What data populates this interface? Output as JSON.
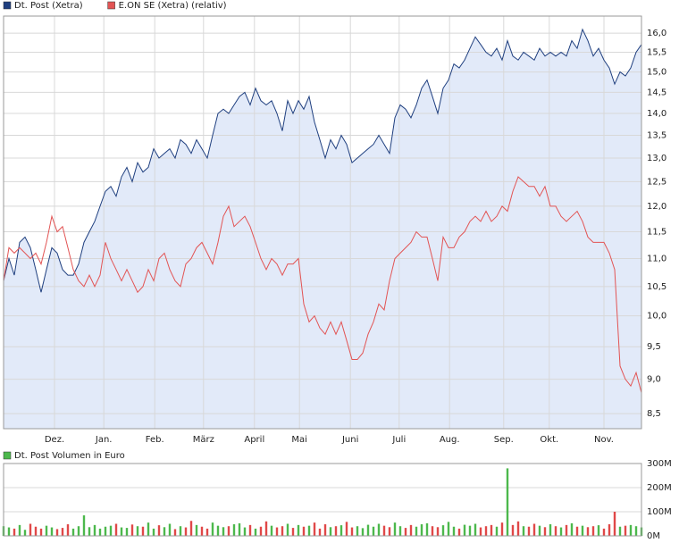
{
  "chart_data": [
    {
      "type": "line",
      "log_scale": true,
      "grid": true,
      "area_color": "#e2eaf9",
      "xlim": [
        0,
        119
      ],
      "ylim": [
        8.29,
        16.46
      ],
      "xticks": [
        {
          "value": 9.5,
          "label": "Dez."
        },
        {
          "value": 18.7,
          "label": "Jan."
        },
        {
          "value": 28.2,
          "label": "Feb."
        },
        {
          "value": 37.3,
          "label": "März"
        },
        {
          "value": 46.8,
          "label": "April"
        },
        {
          "value": 55.2,
          "label": "Mai"
        },
        {
          "value": 64.7,
          "label": "Juni"
        },
        {
          "value": 73.8,
          "label": "Juli"
        },
        {
          "value": 83.2,
          "label": "Aug."
        },
        {
          "value": 93.3,
          "label": "Sep."
        },
        {
          "value": 101.8,
          "label": "Okt."
        },
        {
          "value": 112,
          "label": "Nov."
        }
      ],
      "yticks": [
        {
          "value": 8.5,
          "label": "8,5"
        },
        {
          "value": 9,
          "label": "9,0"
        },
        {
          "value": 9.5,
          "label": "9,5"
        },
        {
          "value": 10,
          "label": "10,0"
        },
        {
          "value": 10.5,
          "label": "10,5"
        },
        {
          "value": 11,
          "label": "11,0"
        },
        {
          "value": 11.5,
          "label": "11,5"
        },
        {
          "value": 12,
          "label": "12,0"
        },
        {
          "value": 12.5,
          "label": "12,5"
        },
        {
          "value": 13,
          "label": "13,0"
        },
        {
          "value": 13.5,
          "label": "13,5"
        },
        {
          "value": 14,
          "label": "14,0"
        },
        {
          "value": 14.5,
          "label": "14,5"
        },
        {
          "value": 15,
          "label": "15,0"
        },
        {
          "value": 15.5,
          "label": "15,5"
        },
        {
          "value": 16,
          "label": "16,0"
        }
      ],
      "series": [
        {
          "name": "Dt. Post (Xetra)",
          "color": "#1f3f7f",
          "values": [
            10.6,
            11.0,
            10.7,
            11.3,
            11.4,
            11.2,
            10.8,
            10.4,
            10.8,
            11.2,
            11.1,
            10.8,
            10.7,
            10.7,
            10.9,
            11.3,
            11.5,
            11.7,
            12.0,
            12.3,
            12.4,
            12.2,
            12.6,
            12.8,
            12.5,
            12.9,
            12.7,
            12.8,
            13.2,
            13.0,
            13.1,
            13.2,
            13.0,
            13.4,
            13.3,
            13.1,
            13.4,
            13.2,
            13.0,
            13.5,
            14.0,
            14.1,
            14.0,
            14.2,
            14.4,
            14.5,
            14.2,
            14.6,
            14.3,
            14.2,
            14.3,
            14.0,
            13.6,
            14.3,
            14.0,
            14.3,
            14.1,
            14.4,
            13.8,
            13.4,
            13.0,
            13.4,
            13.2,
            13.5,
            13.3,
            12.9,
            13.0,
            13.1,
            13.2,
            13.3,
            13.5,
            13.3,
            13.1,
            13.9,
            14.2,
            14.1,
            13.9,
            14.2,
            14.6,
            14.8,
            14.4,
            14.0,
            14.6,
            14.8,
            15.2,
            15.1,
            15.3,
            15.6,
            15.9,
            15.7,
            15.5,
            15.4,
            15.6,
            15.3,
            15.8,
            15.4,
            15.3,
            15.5,
            15.4,
            15.3,
            15.6,
            15.4,
            15.5,
            15.4,
            15.5,
            15.4,
            15.8,
            15.6,
            16.1,
            15.8,
            15.4,
            15.6,
            15.3,
            15.1,
            14.7,
            15.0,
            14.9,
            15.1,
            15.5,
            15.7
          ]
        },
        {
          "name": "E.ON SE (Xetra) (relativ)",
          "color": "#e25454",
          "values": [
            10.6,
            11.2,
            11.1,
            11.2,
            11.1,
            11.0,
            11.1,
            10.9,
            11.3,
            11.8,
            11.5,
            11.6,
            11.2,
            10.8,
            10.6,
            10.5,
            10.7,
            10.5,
            10.7,
            11.3,
            11.0,
            10.8,
            10.6,
            10.8,
            10.6,
            10.4,
            10.5,
            10.8,
            10.6,
            11.0,
            11.1,
            10.8,
            10.6,
            10.5,
            10.9,
            11.0,
            11.2,
            11.3,
            11.1,
            10.9,
            11.3,
            11.8,
            12.0,
            11.6,
            11.7,
            11.8,
            11.6,
            11.3,
            11.0,
            10.8,
            11.0,
            10.9,
            10.7,
            10.9,
            10.9,
            11.0,
            10.2,
            9.9,
            10.0,
            9.8,
            9.7,
            9.9,
            9.7,
            9.9,
            9.6,
            9.3,
            9.3,
            9.4,
            9.7,
            9.9,
            10.2,
            10.1,
            10.6,
            11.0,
            11.1,
            11.2,
            11.3,
            11.5,
            11.4,
            11.4,
            11.0,
            10.6,
            11.4,
            11.2,
            11.2,
            11.4,
            11.5,
            11.7,
            11.8,
            11.7,
            11.9,
            11.7,
            11.8,
            12.0,
            11.9,
            12.3,
            12.6,
            12.5,
            12.4,
            12.4,
            12.2,
            12.4,
            12.0,
            12.0,
            11.8,
            11.7,
            11.8,
            11.9,
            11.7,
            11.4,
            11.3,
            11.3,
            11.3,
            11.1,
            10.8,
            9.2,
            9.0,
            8.9,
            9.1,
            8.8
          ]
        }
      ]
    },
    {
      "type": "bar",
      "grid": true,
      "xlim": [
        0,
        119
      ],
      "ylim": [
        0,
        300
      ],
      "yticks": [
        {
          "value": 0,
          "label": "0M"
        },
        {
          "value": 100,
          "label": "100M"
        },
        {
          "value": 200,
          "label": "200M"
        },
        {
          "value": 300,
          "label": "300M"
        }
      ],
      "up_color": "#4cb84c",
      "down_color": "#e04848",
      "series": [
        {
          "name": "Dt. Post Volumen in Euro",
          "color": "#4cb84c",
          "values": [
            40,
            35,
            30,
            45,
            25,
            50,
            38,
            30,
            42,
            35,
            28,
            33,
            48,
            30,
            40,
            85,
            36,
            45,
            30,
            38,
            42,
            50,
            35,
            33,
            47,
            40,
            38,
            55,
            30,
            44,
            36,
            50,
            28,
            40,
            35,
            62,
            45,
            38,
            30,
            55,
            42,
            36,
            40,
            48,
            52,
            35,
            45,
            30,
            38,
            60,
            42,
            35,
            40,
            50,
            33,
            45,
            38,
            42,
            55,
            30,
            48,
            36,
            40,
            44,
            58,
            35,
            40,
            32,
            46,
            38,
            50,
            42,
            36,
            55,
            40,
            33,
            45,
            38,
            48,
            52,
            40,
            36,
            44,
            58,
            38,
            30,
            46,
            42,
            50,
            35,
            40,
            45,
            38,
            55,
            280,
            45,
            60,
            40,
            38,
            50,
            42,
            36,
            48,
            40,
            35,
            45,
            52,
            38,
            42,
            36,
            40,
            44,
            30,
            48,
            100,
            38,
            42,
            45,
            40,
            35
          ]
        }
      ]
    }
  ]
}
